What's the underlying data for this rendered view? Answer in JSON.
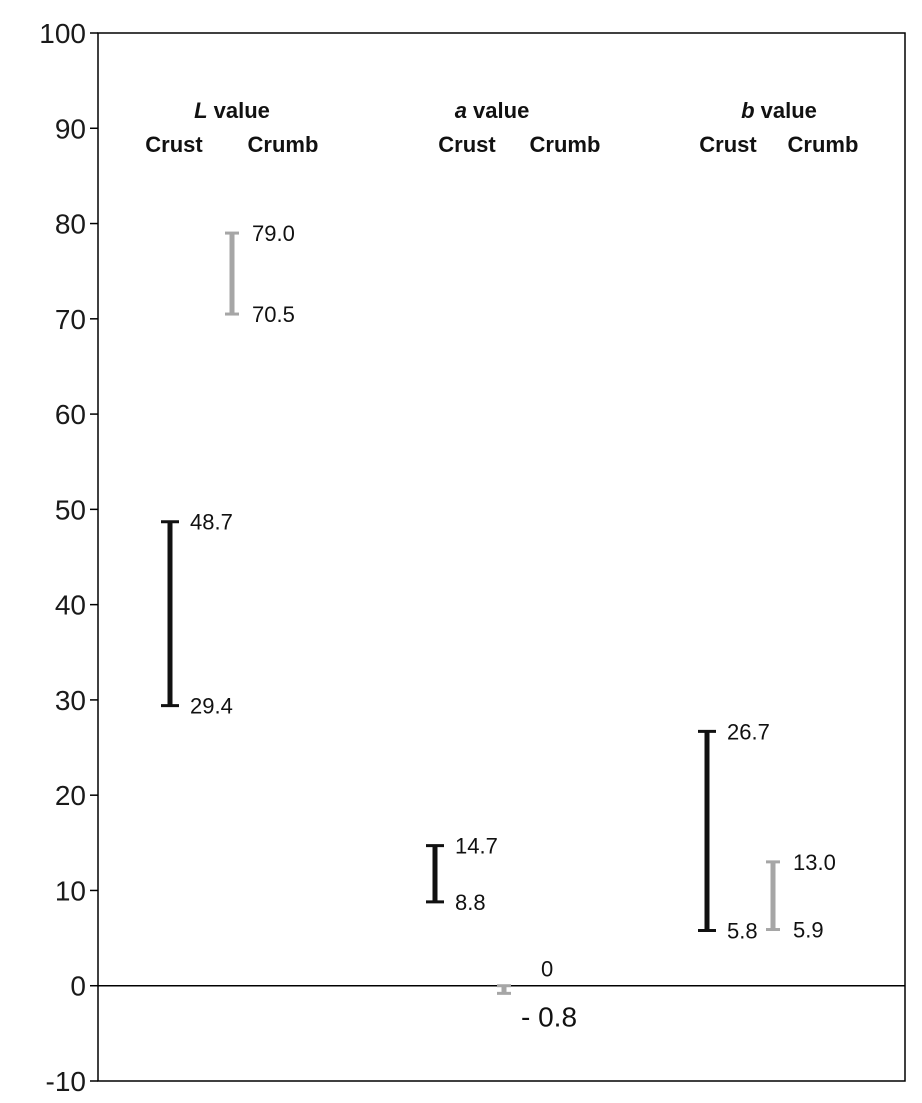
{
  "chart_data": {
    "type": "range",
    "title": "",
    "xlabel": "",
    "ylabel": "",
    "ylim": [
      -10,
      100
    ],
    "yticks": [
      100,
      90,
      80,
      70,
      60,
      50,
      40,
      30,
      20,
      10,
      0,
      -10
    ],
    "grid": false,
    "zero_line": true,
    "colors": {
      "Crust": "#111111",
      "Crumb": "#a6a6a6",
      "axis": "#000000"
    },
    "groups": [
      {
        "name": "L value",
        "name_italic": "L",
        "name_rest": " value",
        "sub_labels": [
          "Crust",
          "Crumb"
        ],
        "ranges": [
          {
            "series": "Crust",
            "max": 48.7,
            "min": 29.4,
            "max_label": "48.7",
            "min_label": "29.4"
          },
          {
            "series": "Crumb",
            "max": 79.0,
            "min": 70.5,
            "max_label": "79.0",
            "min_label": "70.5"
          }
        ]
      },
      {
        "name": "a value",
        "name_italic": "a",
        "name_rest": " value",
        "sub_labels": [
          "Crust",
          "Crumb"
        ],
        "ranges": [
          {
            "series": "Crust",
            "max": 14.7,
            "min": 8.8,
            "max_label": "14.7",
            "min_label": "8.8"
          },
          {
            "series": "Crumb",
            "max": 0,
            "min": -0.8,
            "max_label": "0",
            "min_label": "- 0.8"
          }
        ]
      },
      {
        "name": "b value",
        "name_italic": "b",
        "name_rest": " value",
        "sub_labels": [
          "Crust",
          "Crumb"
        ],
        "ranges": [
          {
            "series": "Crust",
            "max": 26.7,
            "min": 5.8,
            "max_label": "26.7",
            "min_label": "5.8"
          },
          {
            "series": "Crumb",
            "max": 13.0,
            "min": 5.9,
            "max_label": "13.0",
            "min_label": "5.9"
          }
        ]
      }
    ]
  }
}
